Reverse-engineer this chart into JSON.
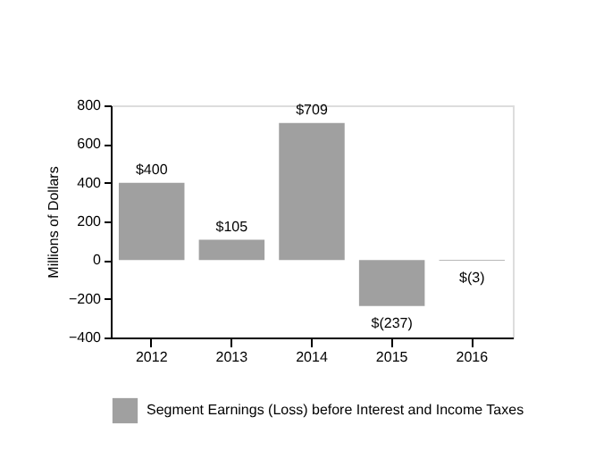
{
  "chart_data": {
    "type": "bar",
    "categories": [
      "2012",
      "2013",
      "2014",
      "2015",
      "2016"
    ],
    "ylabel": "Millions of Dollars",
    "series": [
      {
        "name": "Segment Earnings (Loss) before Interest and Income Taxes",
        "color": "#a0a0a0",
        "values": [
          400,
          105,
          709,
          -237,
          -3
        ],
        "value_labels": [
          "$400",
          "$105",
          "$709",
          "$(237)",
          "$(3)"
        ]
      }
    ],
    "ylim": [
      -400,
      800
    ],
    "yticks": [
      -400,
      -200,
      0,
      200,
      400,
      600,
      800
    ],
    "grid": false,
    "legend": "bottom"
  }
}
